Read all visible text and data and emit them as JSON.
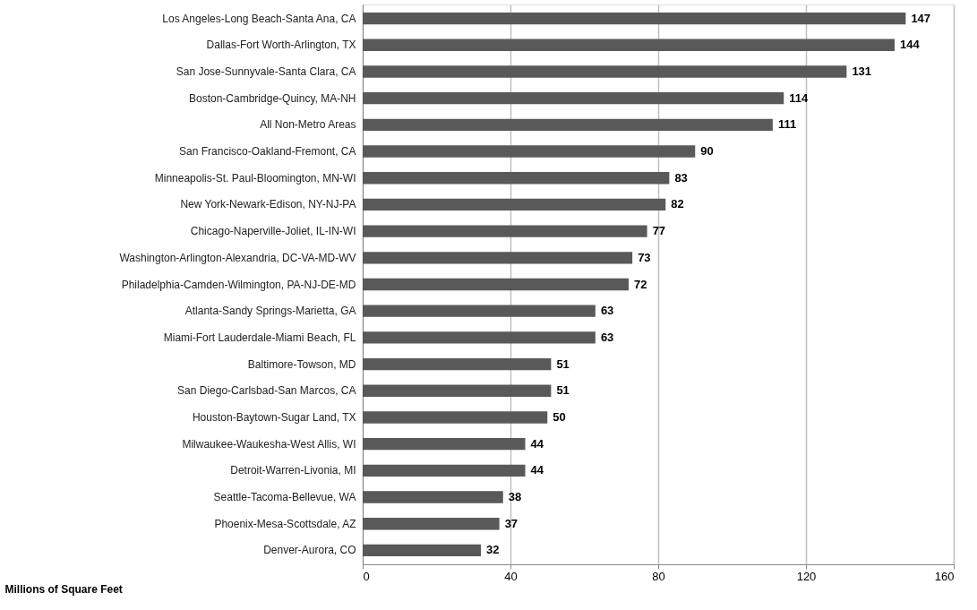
{
  "chart_data": {
    "type": "bar",
    "orientation": "horizontal",
    "categories": [
      "Los Angeles-Long Beach-Santa Ana, CA",
      "Dallas-Fort Worth-Arlington, TX",
      "San Jose-Sunnyvale-Santa Clara, CA",
      "Boston-Cambridge-Quincy, MA-NH",
      "All Non-Metro Areas",
      "San Francisco-Oakland-Fremont, CA",
      "Minneapolis-St. Paul-Bloomington, MN-WI",
      "New York-Newark-Edison, NY-NJ-PA",
      "Chicago-Naperville-Joliet, IL-IN-WI",
      "Washington-Arlington-Alexandria, DC-VA-MD-WV",
      "Philadelphia-Camden-Wilmington, PA-NJ-DE-MD",
      "Atlanta-Sandy Springs-Marietta, GA",
      "Miami-Fort Lauderdale-Miami Beach, FL",
      "Baltimore-Towson, MD",
      "San Diego-Carlsbad-San Marcos, CA",
      "Houston-Baytown-Sugar Land, TX",
      "Milwaukee-Waukesha-West Allis, WI",
      "Detroit-Warren-Livonia, MI",
      "Seattle-Tacoma-Bellevue, WA",
      "Phoenix-Mesa-Scottsdale, AZ",
      "Denver-Aurora, CO"
    ],
    "values": [
      147,
      144,
      131,
      114,
      111,
      90,
      83,
      82,
      77,
      73,
      72,
      63,
      63,
      51,
      51,
      50,
      44,
      44,
      38,
      37,
      32
    ],
    "color": "#595959",
    "xlabel": "Millions of Square Feet",
    "xlim": [
      0,
      160
    ],
    "xticks": [
      0,
      40,
      80,
      120,
      160
    ],
    "grid": "x",
    "data_labels": true
  }
}
